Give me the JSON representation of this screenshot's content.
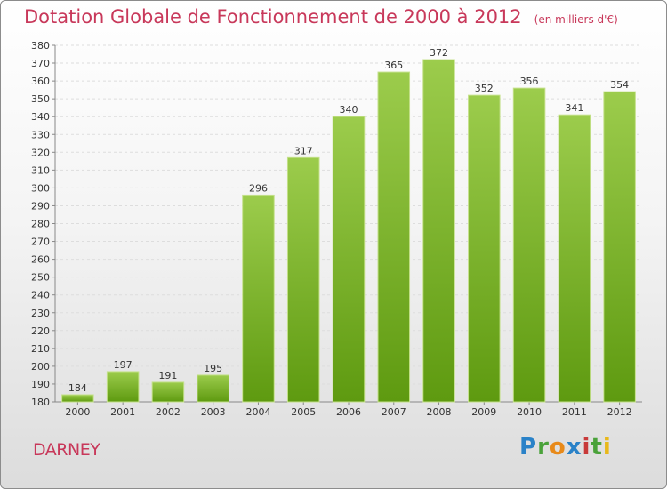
{
  "header": {
    "title": "Dotation Globale de Fonctionnement de 2000 à 2012",
    "subtitle": "(en milliers d'€)"
  },
  "footer": {
    "commune": "DARNEY",
    "brand": "Proxiti"
  },
  "colors": {
    "accent": "#c8385a",
    "bar_top": "#9ccc4c",
    "bar_bottom": "#5e9a10"
  },
  "chart_data": {
    "type": "bar",
    "title": "Dotation Globale de Fonctionnement de 2000 à 2012",
    "subtitle": "(en milliers d'€)",
    "xlabel": "",
    "ylabel": "",
    "categories": [
      "2000",
      "2001",
      "2002",
      "2003",
      "2004",
      "2005",
      "2006",
      "2007",
      "2008",
      "2009",
      "2010",
      "2011",
      "2012"
    ],
    "values": [
      184,
      197,
      191,
      195,
      296,
      317,
      340,
      365,
      372,
      352,
      356,
      341,
      354
    ],
    "ylim": [
      180,
      380
    ],
    "ytick_step": 10,
    "grid": true,
    "legend": "none"
  }
}
